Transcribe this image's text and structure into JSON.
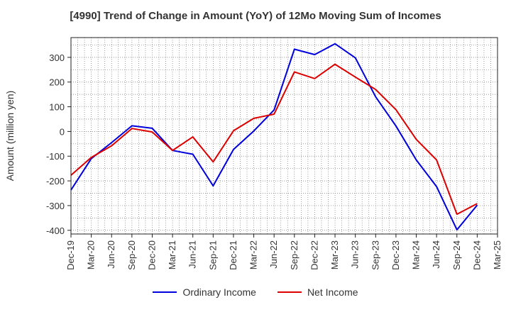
{
  "chart_data": {
    "type": "line",
    "title": "[4990]  Trend of Change in Amount (YoY) of 12Mo Moving Sum of Incomes",
    "ylabel": "Amount (million yen)",
    "xlabel": "",
    "ylim": [
      -415,
      380
    ],
    "yticks": [
      -400,
      -300,
      -200,
      -100,
      0,
      100,
      200,
      300
    ],
    "x": [
      "Dec-19",
      "Mar-20",
      "Jun-20",
      "Sep-20",
      "Dec-20",
      "Mar-21",
      "Jun-21",
      "Sep-21",
      "Dec-21",
      "Mar-22",
      "Jun-22",
      "Sep-22",
      "Dec-22",
      "Mar-23",
      "Jun-23",
      "Sep-23",
      "Dec-23",
      "Mar-24",
      "Jun-24",
      "Sep-24",
      "Dec-24",
      "Mar-25"
    ],
    "grid": true,
    "legend_position": "bottom",
    "series": [
      {
        "name": "Ordinary Income",
        "color": "#0000dd",
        "values": [
          -237,
          -110,
          -45,
          23,
          13,
          -77,
          -92,
          -220,
          -73,
          2,
          87,
          333,
          311,
          355,
          298,
          140,
          22,
          -115,
          -223,
          -398,
          -298,
          null
        ]
      },
      {
        "name": "Net Income",
        "color": "#dd0000",
        "values": [
          -177,
          -105,
          -58,
          12,
          -2,
          -77,
          -22,
          -123,
          3,
          53,
          70,
          241,
          214,
          272,
          220,
          170,
          88,
          -32,
          -115,
          -335,
          -292,
          null
        ]
      }
    ]
  }
}
